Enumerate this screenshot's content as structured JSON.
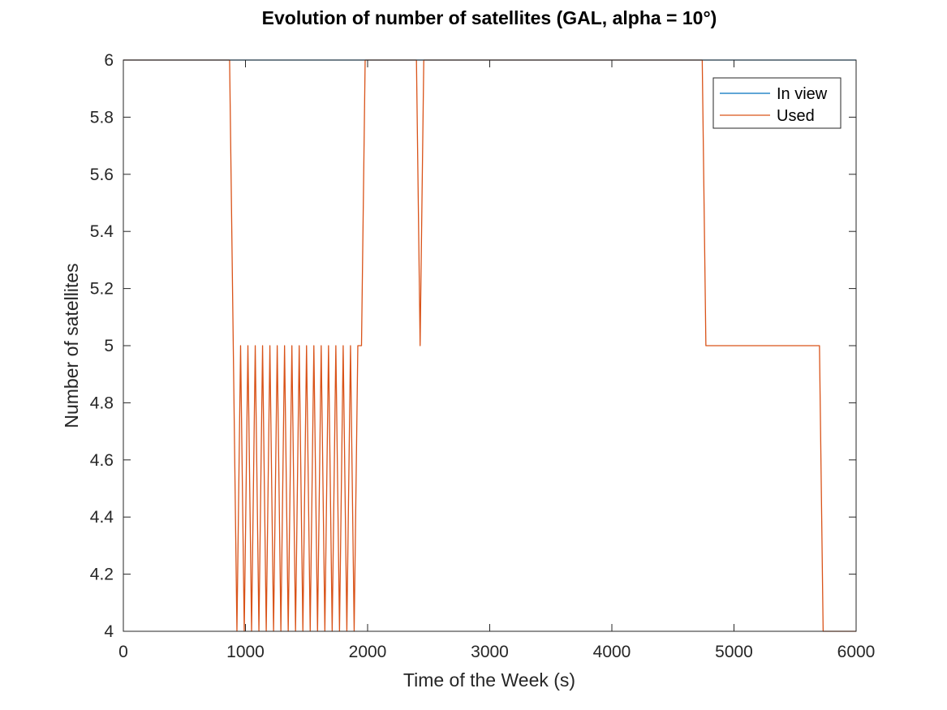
{
  "chart_data": {
    "type": "line",
    "title": "Evolution of number of satellites (GAL, alpha = 10°)",
    "xlabel": "Time of the Week (s)",
    "ylabel": "Number of satellites",
    "xlim": [
      0,
      6000
    ],
    "ylim": [
      4,
      6
    ],
    "xticks": [
      0,
      1000,
      2000,
      3000,
      4000,
      5000,
      6000
    ],
    "yticks": [
      4,
      4.2,
      4.4,
      4.6,
      4.8,
      5,
      5.2,
      5.4,
      5.6,
      5.8,
      6
    ],
    "xtick_labels": [
      "0",
      "1000",
      "2000",
      "3000",
      "4000",
      "5000",
      "6000"
    ],
    "ytick_labels": [
      "4",
      "4.2",
      "4.4",
      "4.6",
      "4.8",
      "5",
      "5.2",
      "5.4",
      "5.6",
      "5.8",
      "6"
    ],
    "grid": false,
    "legend": "top-right",
    "series": [
      {
        "name": "In view",
        "color": "#0072BD",
        "x": [
          0,
          6000
        ],
        "y": [
          6,
          6
        ]
      },
      {
        "name": "Used",
        "color": "#D95319",
        "x": [
          0,
          870,
          930,
          960,
          990,
          1020,
          1050,
          1080,
          1110,
          1140,
          1170,
          1200,
          1230,
          1260,
          1290,
          1320,
          1350,
          1380,
          1410,
          1440,
          1470,
          1500,
          1530,
          1560,
          1590,
          1620,
          1650,
          1680,
          1710,
          1740,
          1770,
          1800,
          1830,
          1860,
          1890,
          1920,
          1950,
          1980,
          2400,
          2430,
          2460,
          4740,
          4770,
          5700,
          5730,
          6000
        ],
        "y": [
          6,
          6,
          4,
          5,
          4,
          5,
          4,
          5,
          4,
          5,
          4,
          5,
          4,
          5,
          4,
          5,
          4,
          5,
          4,
          5,
          4,
          5,
          4,
          5,
          4,
          5,
          4,
          5,
          4,
          5,
          4,
          5,
          4,
          5,
          4,
          5,
          5,
          6,
          6,
          5,
          6,
          6,
          5,
          5,
          4,
          4
        ]
      }
    ]
  }
}
